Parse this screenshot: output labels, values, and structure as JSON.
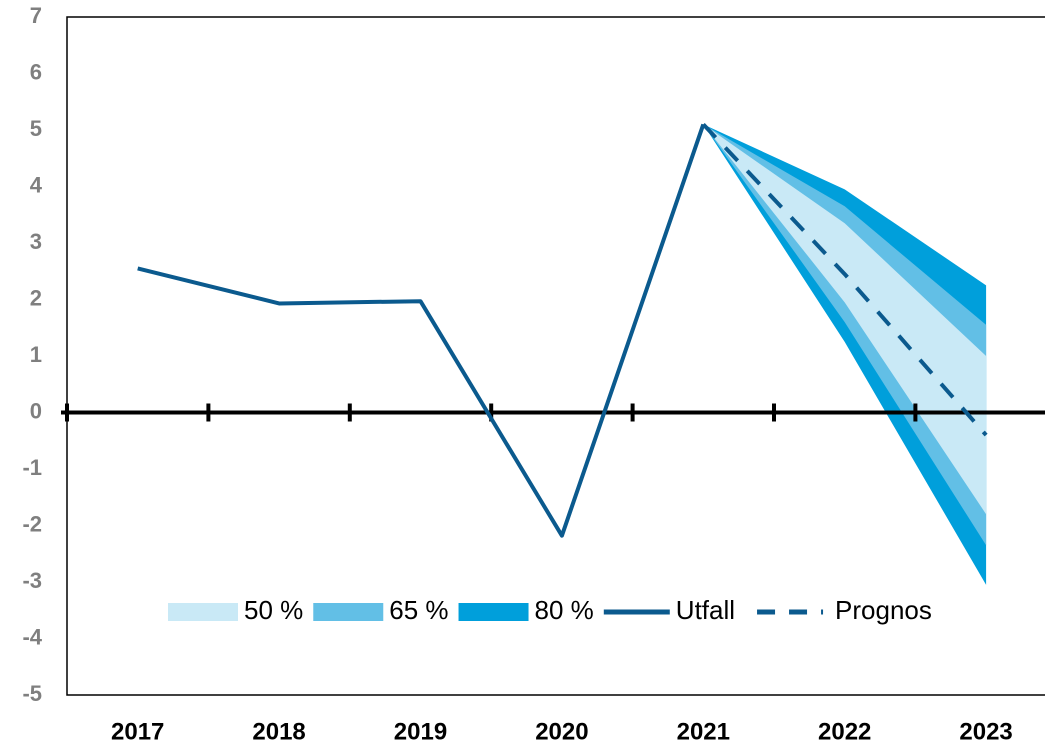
{
  "chart_data": {
    "type": "fan",
    "categories": [
      "2017",
      "2018",
      "2019",
      "2020",
      "2021",
      "2022",
      "2023"
    ],
    "bands": [
      {
        "name": "80 %",
        "color": "#009fdb",
        "upper": [
          null,
          null,
          null,
          null,
          5.1,
          3.95,
          2.25
        ],
        "lower": [
          null,
          null,
          null,
          null,
          5.1,
          1.25,
          -3.05
        ]
      },
      {
        "name": "65 %",
        "color": "#62bfe6",
        "upper": [
          null,
          null,
          null,
          null,
          5.1,
          3.65,
          1.55
        ],
        "lower": [
          null,
          null,
          null,
          null,
          5.1,
          1.6,
          -2.35
        ]
      },
      {
        "name": "50 %",
        "color": "#c9e9f6",
        "upper": [
          null,
          null,
          null,
          null,
          5.1,
          3.35,
          1.0
        ],
        "lower": [
          null,
          null,
          null,
          null,
          5.1,
          1.95,
          -1.8
        ]
      }
    ],
    "series": [
      {
        "name": "Utfall",
        "color": "#0b5a8e",
        "dash": false,
        "values": [
          2.55,
          1.93,
          1.97,
          -2.18,
          5.1,
          null,
          null
        ]
      },
      {
        "name": "Prognos",
        "color": "#0b5a8e",
        "dash": true,
        "values": [
          null,
          null,
          null,
          null,
          5.1,
          2.45,
          -0.4
        ]
      }
    ],
    "ylim": [
      -5,
      7
    ],
    "yticks": [
      -5,
      -4,
      -3,
      -2,
      -1,
      0,
      1,
      2,
      3,
      4,
      5,
      6,
      7
    ],
    "legend": "lower center"
  }
}
